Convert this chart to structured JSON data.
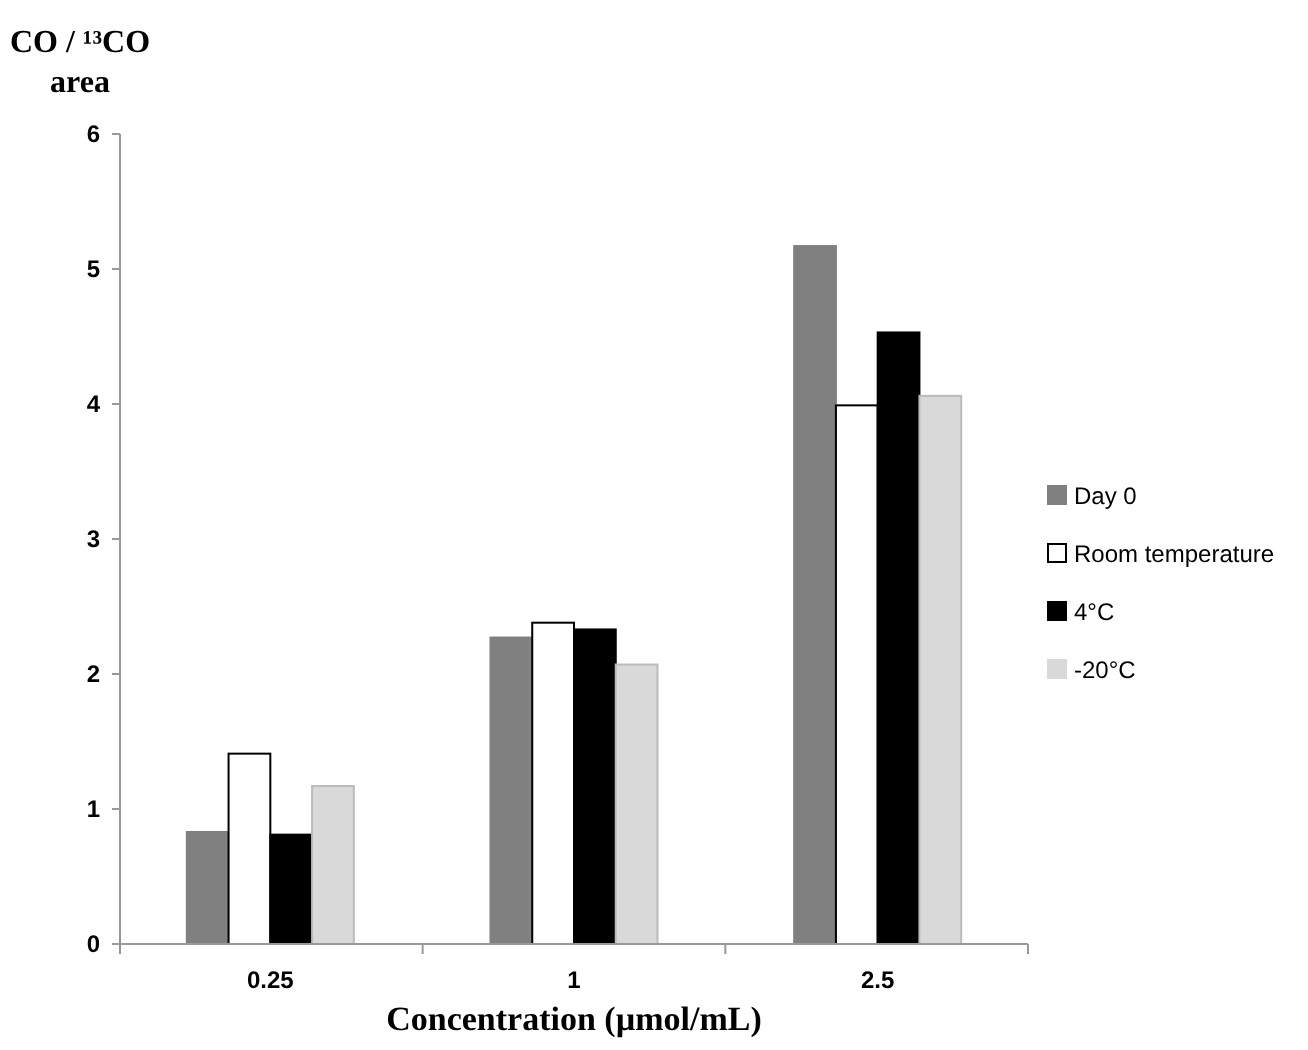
{
  "chart_data": {
    "type": "bar",
    "ylabel": "CO / ¹³CO area",
    "xlabel": "Concentration (µmol/mL)",
    "categories": [
      "0.25",
      "1",
      "2.5"
    ],
    "series": [
      {
        "name": "Day 0",
        "color": "#808080",
        "values": [
          0.83,
          2.27,
          5.17
        ]
      },
      {
        "name": "Room temperature",
        "color": "#ffffff",
        "values": [
          1.41,
          2.38,
          3.99
        ]
      },
      {
        "name": "4°C",
        "color": "#000000",
        "values": [
          0.81,
          2.33,
          4.53
        ]
      },
      {
        "name": "-20°C",
        "color": "#d9d9d9",
        "values": [
          1.17,
          2.07,
          4.06
        ]
      }
    ],
    "ylim": [
      0,
      6
    ],
    "yticks": [
      0,
      1,
      2,
      3,
      4,
      5,
      6
    ],
    "grid": false,
    "legend": "right"
  }
}
